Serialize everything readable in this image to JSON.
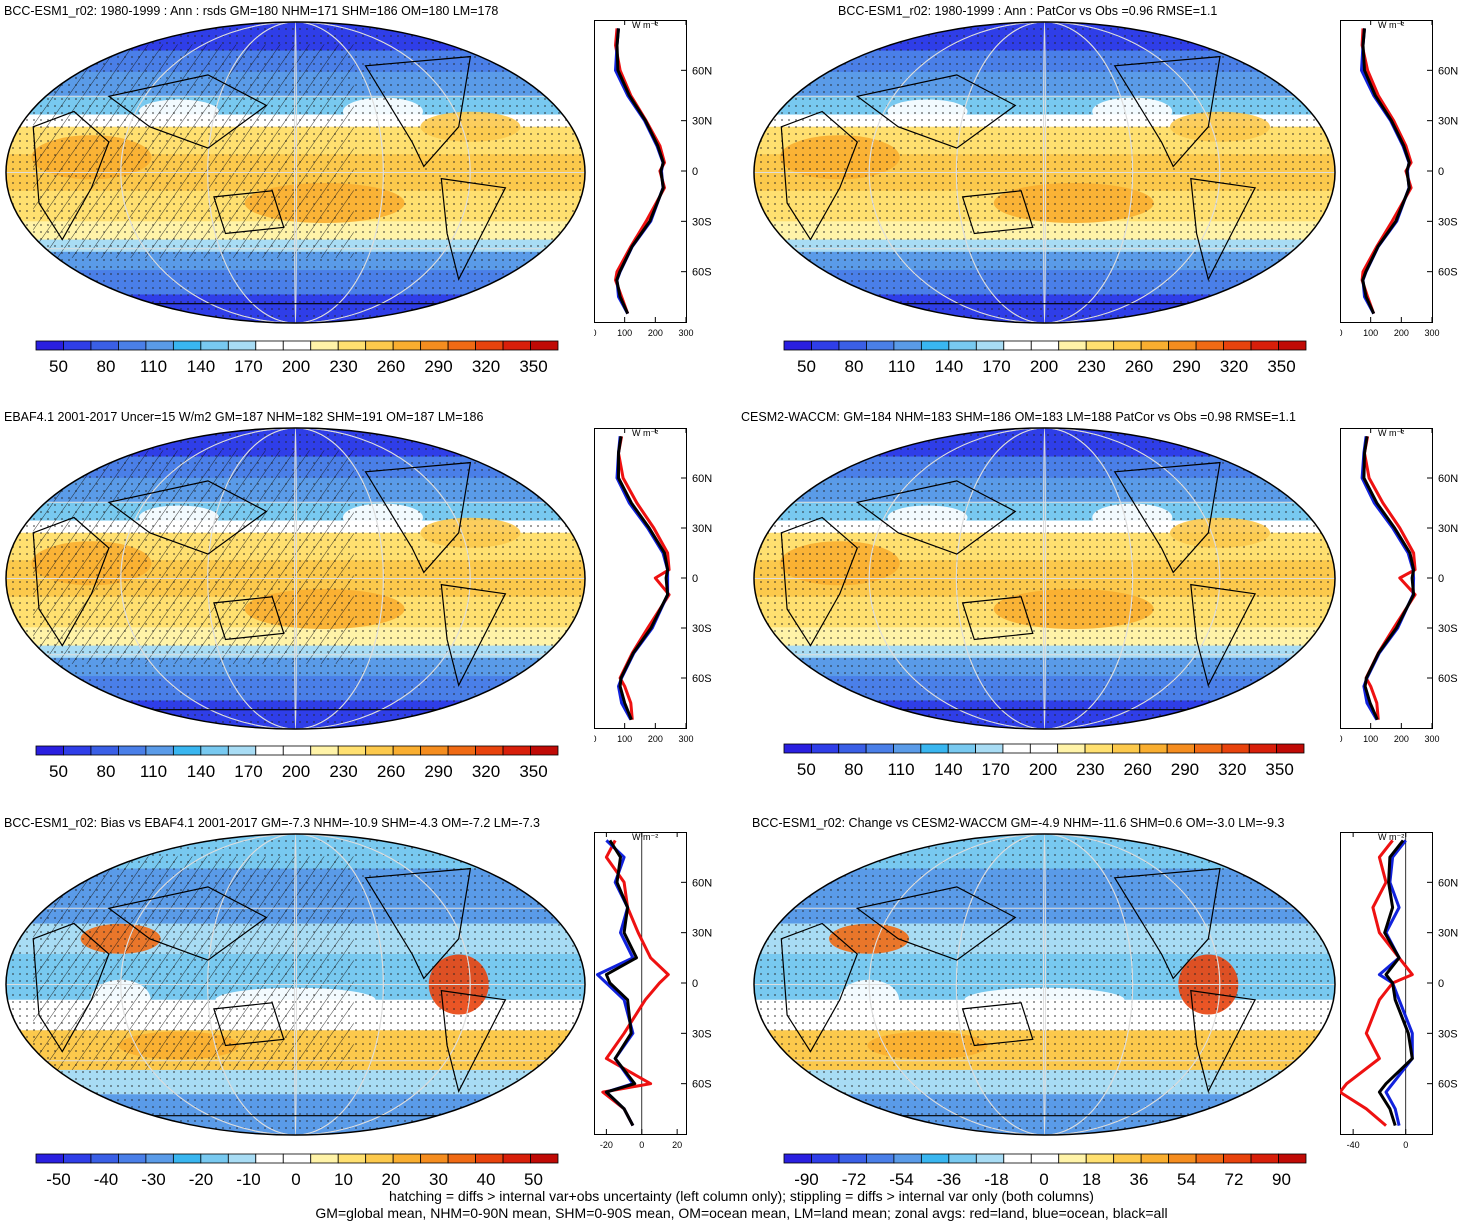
{
  "panels": [
    {
      "title": "BCC-ESM1_r02: 1980-1999 : Ann : rsds GM=180 NHM=171 SHM=186 OM=180 LM=178",
      "colorbar_labels": [
        "50",
        "80",
        "110",
        "140",
        "170",
        "200",
        "230",
        "260",
        "290",
        "320",
        "350"
      ],
      "zonal_xticks": [
        "0",
        "100",
        "200",
        "300"
      ],
      "zonal_unit": "W m⁻²",
      "hatched": true,
      "kind": "abs"
    },
    {
      "title": "BCC-ESM1_r02: 1980-1999 : Ann : PatCor vs Obs =0.96 RMSE=1.1",
      "colorbar_labels": [
        "50",
        "80",
        "110",
        "140",
        "170",
        "200",
        "230",
        "260",
        "290",
        "320",
        "350"
      ],
      "zonal_xticks": [
        "0",
        "100",
        "200",
        "300"
      ],
      "zonal_unit": "W m⁻²",
      "hatched": false,
      "kind": "abs"
    },
    {
      "title": "EBAF4.1 2001-2017 Uncer=15 W/m2 GM=187 NHM=182 SHM=191 OM=187 LM=186",
      "colorbar_labels": [
        "50",
        "80",
        "110",
        "140",
        "170",
        "200",
        "230",
        "260",
        "290",
        "320",
        "350"
      ],
      "zonal_xticks": [
        "0",
        "100",
        "200",
        "300"
      ],
      "zonal_unit": "W m⁻²",
      "hatched": true,
      "kind": "abs"
    },
    {
      "title": "CESM2-WACCM: GM=184 NHM=183 SHM=186 OM=183 LM=188 PatCor vs Obs =0.98 RMSE=1.1",
      "colorbar_labels": [
        "50",
        "80",
        "110",
        "140",
        "170",
        "200",
        "230",
        "260",
        "290",
        "320",
        "350"
      ],
      "zonal_xticks": [
        "0",
        "100",
        "200",
        "300"
      ],
      "zonal_unit": "W m⁻²",
      "hatched": false,
      "kind": "abs"
    },
    {
      "title": "BCC-ESM1_r02: Bias vs EBAF4.1 2001-2017 GM=-7.3 NHM=-10.9 SHM=-4.3 OM=-7.2 LM=-7.3",
      "colorbar_labels": [
        "-50",
        "-40",
        "-30",
        "-20",
        "-10",
        "0",
        "10",
        "20",
        "30",
        "40",
        "50"
      ],
      "zonal_xticks": [
        "-20",
        "0",
        "20"
      ],
      "zonal_unit": "W m⁻²",
      "hatched": true,
      "kind": "diff"
    },
    {
      "title": "BCC-ESM1_r02: Change vs CESM2-WACCM GM=-4.9 NHM=-11.6 SHM=0.6 OM=-3.0 LM=-9.3",
      "colorbar_labels": [
        "-90",
        "-72",
        "-54",
        "-36",
        "-18",
        "0",
        "18",
        "36",
        "54",
        "72",
        "90"
      ],
      "zonal_xticks": [
        "-40",
        "0"
      ],
      "zonal_unit": "W m⁻²",
      "hatched": false,
      "kind": "diff"
    }
  ],
  "lat_labels": [
    "60N",
    "30N",
    "0",
    "30S",
    "60S"
  ],
  "palette": [
    "#2a1fe0",
    "#2f3ee8",
    "#3a5fe6",
    "#4a7fe8",
    "#5a9be8",
    "#39b6f0",
    "#78c9f0",
    "#a8dcf4",
    "#ffffff",
    "#ffffff",
    "#fff3a8",
    "#ffe070",
    "#fcc94c",
    "#f9ae30",
    "#f58d1f",
    "#f06a14",
    "#e8430d",
    "#d81f0a",
    "#c00a06"
  ],
  "footer": {
    "line1": "hatching = diffs > internal var+obs uncertainty (left column only); stippling = diffs > internal var only (both columns)",
    "line2": "GM=global mean, NHM=0-90N mean, SHM=0-90S mean, OM=ocean mean, LM=land mean; zonal avgs: red=land, blue=ocean, black=all"
  },
  "chart_data": [
    {
      "type": "line",
      "title": "BCC-ESM1_r02: 1980-1999 : Ann : rsds GM=180 NHM=171 SHM=186 OM=180 LM=178",
      "y_ticks": [
        "60N",
        "30N",
        "0",
        "30S",
        "60S"
      ],
      "xlim": [
        0,
        300
      ],
      "series": [
        {
          "name": "red=land",
          "x": [
            75,
            70,
            85,
            120,
            170,
            215,
            230,
            215,
            230,
            170,
            120,
            75,
            70,
            90,
            110
          ],
          "y": [
            85,
            75,
            60,
            45,
            30,
            15,
            5,
            0,
            -10,
            -30,
            -45,
            -60,
            -65,
            -75,
            -85
          ]
        },
        {
          "name": "blue=ocean",
          "x": [
            80,
            75,
            70,
            110,
            165,
            205,
            225,
            220,
            225,
            185,
            125,
            85,
            75,
            80,
            110
          ],
          "y": [
            85,
            75,
            60,
            45,
            30,
            15,
            5,
            0,
            -10,
            -30,
            -45,
            -60,
            -65,
            -75,
            -85
          ]
        },
        {
          "name": "black=all",
          "x": [
            80,
            75,
            78,
            115,
            168,
            208,
            226,
            218,
            226,
            182,
            124,
            84,
            74,
            85,
            110
          ],
          "y": [
            85,
            75,
            60,
            45,
            30,
            15,
            5,
            0,
            -10,
            -30,
            -45,
            -60,
            -65,
            -75,
            -85
          ]
        }
      ]
    },
    {
      "type": "line",
      "title": "BCC-ESM1_r02: 1980-1999 : Ann : PatCor vs Obs =0.96 RMSE=1.1",
      "y_ticks": [
        "60N",
        "30N",
        "0",
        "30S",
        "60S"
      ],
      "xlim": [
        0,
        300
      ],
      "series": [
        {
          "name": "red=land",
          "x": [
            75,
            72,
            90,
            125,
            175,
            215,
            232,
            215,
            232,
            170,
            120,
            75,
            72,
            90,
            110
          ],
          "y": [
            85,
            75,
            60,
            45,
            30,
            15,
            5,
            0,
            -10,
            -30,
            -45,
            -60,
            -65,
            -75,
            -85
          ]
        },
        {
          "name": "blue=ocean",
          "x": [
            80,
            75,
            70,
            110,
            165,
            205,
            225,
            220,
            225,
            185,
            125,
            85,
            75,
            80,
            110
          ],
          "y": [
            85,
            75,
            60,
            45,
            30,
            15,
            5,
            0,
            -10,
            -30,
            -45,
            -60,
            -65,
            -75,
            -85
          ]
        },
        {
          "name": "black=all",
          "x": [
            80,
            75,
            80,
            115,
            168,
            208,
            226,
            218,
            226,
            182,
            124,
            84,
            74,
            85,
            110
          ],
          "y": [
            85,
            75,
            60,
            45,
            30,
            15,
            5,
            0,
            -10,
            -30,
            -45,
            -60,
            -65,
            -75,
            -85
          ]
        }
      ]
    },
    {
      "type": "line",
      "title": "EBAF4.1 2001-2017 Uncer=15 W/m2 GM=187 NHM=182 SHM=191 OM=187 LM=186",
      "y_ticks": [
        "60N",
        "30N",
        "0",
        "30S",
        "60S"
      ],
      "xlim": [
        0,
        300
      ],
      "series": [
        {
          "name": "red=land",
          "x": [
            90,
            80,
            95,
            140,
            195,
            240,
            245,
            200,
            245,
            175,
            125,
            85,
            100,
            120,
            125
          ],
          "y": [
            85,
            75,
            60,
            45,
            30,
            15,
            5,
            0,
            -10,
            -30,
            -45,
            -60,
            -65,
            -75,
            -85
          ]
        },
        {
          "name": "blue=ocean",
          "x": [
            85,
            80,
            75,
            115,
            175,
            225,
            240,
            240,
            240,
            190,
            130,
            90,
            80,
            90,
            120
          ],
          "y": [
            85,
            75,
            60,
            45,
            30,
            15,
            5,
            0,
            -10,
            -30,
            -45,
            -60,
            -65,
            -75,
            -85
          ]
        },
        {
          "name": "black=all",
          "x": [
            88,
            80,
            80,
            122,
            180,
            230,
            240,
            235,
            240,
            186,
            128,
            88,
            85,
            100,
            122
          ],
          "y": [
            85,
            75,
            60,
            45,
            30,
            15,
            5,
            0,
            -10,
            -30,
            -45,
            -60,
            -65,
            -75,
            -85
          ]
        }
      ]
    },
    {
      "type": "line",
      "title": "CESM2-WACCM: GM=184 NHM=183 SHM=186 OM=183 LM=188 PatCor vs Obs =0.98 RMSE=1.1",
      "y_ticks": [
        "60N",
        "30N",
        "0",
        "30S",
        "60S"
      ],
      "xlim": [
        0,
        300
      ],
      "series": [
        {
          "name": "red=land",
          "x": [
            90,
            80,
            95,
            140,
            195,
            240,
            245,
            195,
            245,
            175,
            125,
            85,
            100,
            120,
            125
          ],
          "y": [
            85,
            75,
            60,
            45,
            30,
            15,
            5,
            0,
            -10,
            -30,
            -45,
            -60,
            -65,
            -75,
            -85
          ]
        },
        {
          "name": "blue=ocean",
          "x": [
            85,
            78,
            72,
            112,
            172,
            222,
            238,
            240,
            238,
            188,
            128,
            88,
            78,
            88,
            120
          ],
          "y": [
            85,
            75,
            60,
            45,
            30,
            15,
            5,
            0,
            -10,
            -30,
            -45,
            -60,
            -65,
            -75,
            -85
          ]
        },
        {
          "name": "black=all",
          "x": [
            88,
            80,
            78,
            120,
            178,
            228,
            240,
            235,
            240,
            184,
            126,
            86,
            82,
            98,
            122
          ],
          "y": [
            85,
            75,
            60,
            45,
            30,
            15,
            5,
            0,
            -10,
            -30,
            -45,
            -60,
            -65,
            -75,
            -85
          ]
        }
      ]
    },
    {
      "type": "line",
      "title": "BCC-ESM1_r02: Bias vs EBAF4.1 2001-2017 GM=-7.3 NHM=-10.9 SHM=-4.3 OM=-7.2 LM=-7.3",
      "y_ticks": [
        "60N",
        "30N",
        "0",
        "30S",
        "60S"
      ],
      "xlim": [
        -27,
        25
      ],
      "series": [
        {
          "name": "red=land",
          "x": [
            -15,
            -20,
            -10,
            -8,
            -2,
            5,
            15,
            10,
            2,
            -10,
            -20,
            5,
            -22,
            -10,
            -5
          ],
          "y": [
            85,
            75,
            60,
            45,
            30,
            15,
            5,
            0,
            -10,
            -30,
            -45,
            -60,
            -65,
            -75,
            -85
          ]
        },
        {
          "name": "blue=ocean",
          "x": [
            -20,
            -10,
            -15,
            -8,
            -12,
            -5,
            -25,
            -20,
            -10,
            -5,
            -15,
            -5,
            -20,
            -10,
            -5
          ],
          "y": [
            85,
            75,
            60,
            45,
            30,
            15,
            5,
            0,
            -10,
            -30,
            -45,
            -60,
            -65,
            -75,
            -85
          ]
        },
        {
          "name": "black=all",
          "x": [
            -18,
            -12,
            -14,
            -8,
            -10,
            -3,
            -20,
            -18,
            -8,
            -6,
            -15,
            -4,
            -20,
            -10,
            -5
          ],
          "y": [
            85,
            75,
            60,
            45,
            30,
            15,
            5,
            0,
            -10,
            -30,
            -45,
            -60,
            -65,
            -75,
            -85
          ]
        }
      ]
    },
    {
      "type": "line",
      "title": "BCC-ESM1_r02: Change vs CESM2-WACCM GM=-4.9 NHM=-11.6 SHM=0.6 OM=-3.0 LM=-9.3",
      "y_ticks": [
        "60N",
        "30N",
        "0",
        "30S",
        "60S"
      ],
      "xlim": [
        -50,
        20
      ],
      "series": [
        {
          "name": "red=land",
          "x": [
            -10,
            -20,
            -15,
            -25,
            -20,
            -5,
            5,
            -10,
            -20,
            -30,
            -20,
            -45,
            -50,
            -30,
            -15
          ],
          "y": [
            85,
            75,
            60,
            45,
            30,
            15,
            5,
            0,
            -10,
            -30,
            -45,
            -60,
            -65,
            -75,
            -85
          ]
        },
        {
          "name": "blue=ocean",
          "x": [
            0,
            -10,
            -12,
            -5,
            -15,
            -5,
            -20,
            -10,
            -5,
            5,
            5,
            -10,
            -15,
            -8,
            -5
          ],
          "y": [
            85,
            75,
            60,
            45,
            30,
            15,
            5,
            0,
            -10,
            -30,
            -45,
            -60,
            -65,
            -75,
            -85
          ]
        },
        {
          "name": "black=all",
          "x": [
            -2,
            -12,
            -13,
            -10,
            -16,
            -5,
            -15,
            -10,
            -8,
            2,
            5,
            -15,
            -20,
            -12,
            -8
          ],
          "y": [
            85,
            75,
            60,
            45,
            30,
            15,
            5,
            0,
            -10,
            -30,
            -45,
            -60,
            -65,
            -75,
            -85
          ]
        }
      ]
    }
  ]
}
